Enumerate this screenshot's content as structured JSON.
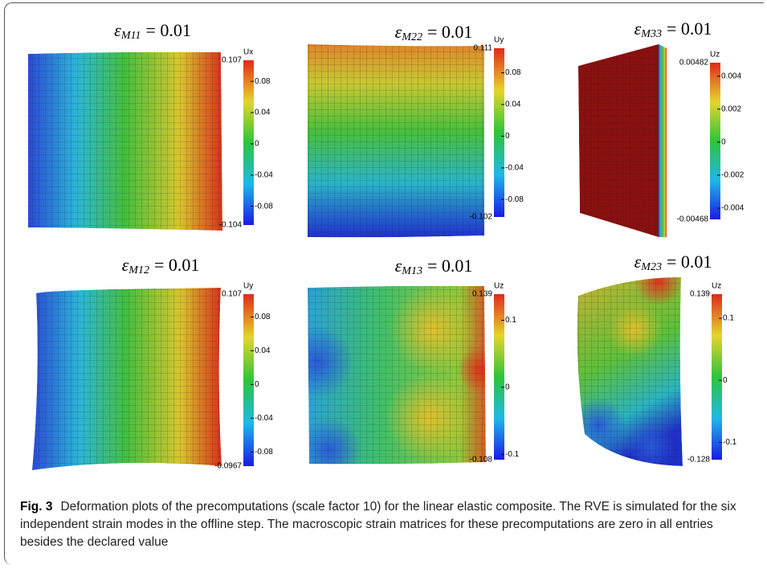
{
  "figure": {
    "panels": [
      {
        "title": {
          "symbol": "ε",
          "subscript": "M11",
          "value": "= 0.01"
        },
        "colorbar": {
          "label": "Ux",
          "max": "0.107",
          "min": "-0.104",
          "ticks": [
            "0.08",
            "0.04",
            "0",
            "-0.04",
            "-0.08"
          ]
        }
      },
      {
        "title": {
          "symbol": "ε",
          "subscript": "M22",
          "value": "= 0.01"
        },
        "colorbar": {
          "label": "Uy",
          "max": "0.111",
          "min": "-0.102",
          "ticks": [
            "0.08",
            "0.04",
            "0",
            "-0.04",
            "-0.08"
          ]
        }
      },
      {
        "title": {
          "symbol": "ε",
          "subscript": "M33",
          "value": "= 0.01"
        },
        "colorbar": {
          "label": "Uz",
          "max": "0.00482",
          "min": "-0.00468",
          "ticks": [
            "0.004",
            "0.002",
            "0",
            "-0.002",
            "-0.004"
          ]
        }
      },
      {
        "title": {
          "symbol": "ε",
          "subscript": "M12",
          "value": "= 0.01"
        },
        "colorbar": {
          "label": "Uy",
          "max": "0.107",
          "min": "-0.0967",
          "ticks": [
            "0.08",
            "0.04",
            "0",
            "-0.04",
            "-0.08"
          ]
        }
      },
      {
        "title": {
          "symbol": "ε",
          "subscript": "M13",
          "value": "= 0.01"
        },
        "colorbar": {
          "label": "Uz",
          "max": "0.139",
          "min": "-0.108",
          "ticks": [
            "0.1",
            "0",
            "-0.1"
          ]
        }
      },
      {
        "title": {
          "symbol": "ε",
          "subscript": "M23",
          "value": "= 0.01"
        },
        "colorbar": {
          "label": "Uz",
          "max": "0.139",
          "min": "-0.128",
          "ticks": [
            "0.1",
            "0",
            "-0.1"
          ]
        }
      }
    ]
  },
  "caption": {
    "label": "Fig. 3",
    "text": "Deformation plots of the precomputations (scale factor 10) for the linear elastic composite. The RVE is simulated for the six independent strain modes in the offline step. The macroscopic strain matrices for these precomputations are zero in all entries besides the declared value"
  }
}
